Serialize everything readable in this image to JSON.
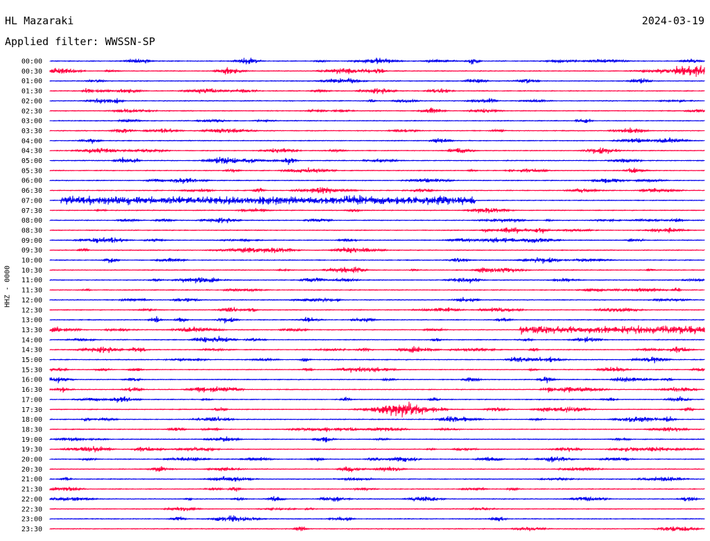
{
  "header": {
    "station": "HL Mazaraki",
    "date": "2024-03-19",
    "filter": "Applied filter: WWSSN-SP"
  },
  "colors": {
    "blue": "#0000ee",
    "red": "#ff0040"
  },
  "chart_data": {
    "type": "line",
    "title": "HL Mazaraki",
    "ylabel": "HHZ - 0000",
    "xlabel": "",
    "trace_colors": [
      "#0000ee",
      "#ff0040"
    ],
    "row_labels": [
      "00:00",
      "00:30",
      "01:00",
      "01:30",
      "02:00",
      "02:30",
      "03:00",
      "03:30",
      "04:00",
      "04:30",
      "05:00",
      "05:30",
      "06:00",
      "06:30",
      "07:00",
      "07:30",
      "08:00",
      "08:30",
      "09:00",
      "09:30",
      "10:00",
      "10:30",
      "11:00",
      "11:30",
      "12:00",
      "12:30",
      "13:00",
      "13:30",
      "14:00",
      "14:30",
      "15:00",
      "15:30",
      "16:00",
      "16:30",
      "17:00",
      "17:30",
      "18:00",
      "18:30",
      "19:00",
      "19:30",
      "20:00",
      "20:30",
      "21:00",
      "21:30",
      "22:00",
      "22:30",
      "23:00",
      "23:30"
    ],
    "major_events": [
      {
        "row": "07:00",
        "position_min": 0.5,
        "duration_min": 19,
        "amplitude": "high"
      },
      {
        "row": "05:00",
        "position_min": 7.5,
        "duration_min": 1,
        "amplitude": "high"
      },
      {
        "row": "00:30",
        "position_min": 28.7,
        "duration_min": 3,
        "amplitude": "very-high"
      },
      {
        "row": "13:30",
        "position_min": 21.5,
        "duration_min": 12,
        "amplitude": "high"
      },
      {
        "row": "17:30",
        "position_min": 15.2,
        "duration_min": 2,
        "amplitude": "very-high"
      }
    ]
  }
}
